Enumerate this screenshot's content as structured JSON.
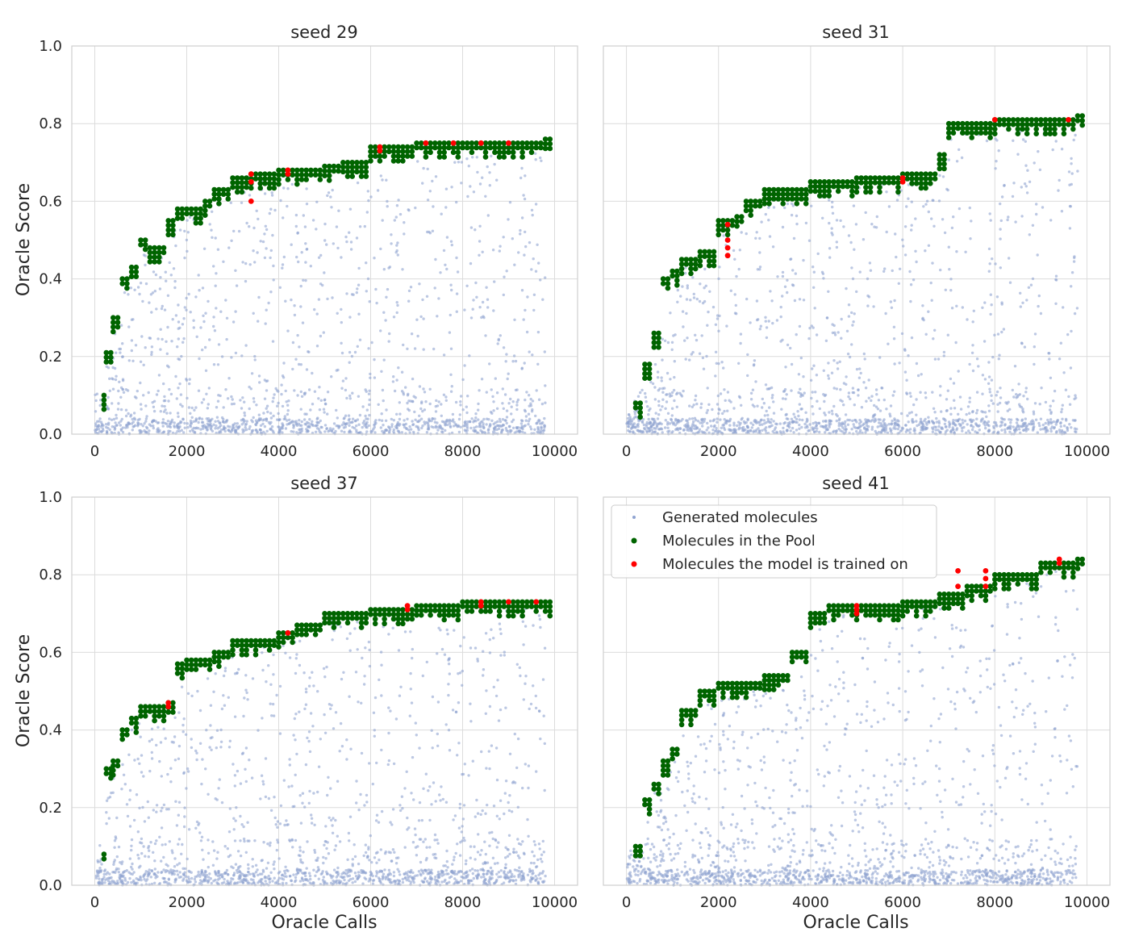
{
  "figure": {
    "panels": [
      {
        "key": "p29",
        "title": "seed 29"
      },
      {
        "key": "p31",
        "title": "seed 31"
      },
      {
        "key": "p37",
        "title": "seed 37"
      },
      {
        "key": "p41",
        "title": "seed 41"
      }
    ],
    "ylabel": "Oracle Score",
    "xlabel": "Oracle Calls",
    "x_ticks": [
      "0",
      "2000",
      "4000",
      "6000",
      "8000",
      "10000"
    ],
    "y_ticks": [
      "0.0",
      "0.2",
      "0.4",
      "0.6",
      "0.8",
      "1.0"
    ],
    "legend": {
      "generated": "Generated molecules",
      "pool": "Molecules in the Pool",
      "trained": "Molecules the model is trained on"
    }
  },
  "chart_data": [
    {
      "type": "scatter",
      "title": "seed 29",
      "ylabel": "Oracle Score",
      "xlim": [
        -500,
        10500
      ],
      "ylim": [
        0,
        1.0
      ],
      "grid": true,
      "series": [
        {
          "name": "Generated molecules",
          "color": "#8fa3d1",
          "sampling": "approx. 10000 molecules, dense near 0.0, spread below the pool frontier"
        },
        {
          "name": "Molecules in the Pool",
          "color": "#006400",
          "frontier": [
            [
              200,
              0.1
            ],
            [
              250,
              0.21
            ],
            [
              400,
              0.3
            ],
            [
              600,
              0.4
            ],
            [
              800,
              0.43
            ],
            [
              1000,
              0.5
            ],
            [
              1200,
              0.48
            ],
            [
              1600,
              0.55
            ],
            [
              1800,
              0.58
            ],
            [
              2400,
              0.6
            ],
            [
              2600,
              0.63
            ],
            [
              3000,
              0.66
            ],
            [
              3400,
              0.67
            ],
            [
              4000,
              0.68
            ],
            [
              5000,
              0.69
            ],
            [
              5400,
              0.7
            ],
            [
              6000,
              0.74
            ],
            [
              7000,
              0.75
            ],
            [
              8000,
              0.75
            ],
            [
              9000,
              0.75
            ],
            [
              9800,
              0.76
            ]
          ]
        },
        {
          "name": "Molecules the model is trained on",
          "color": "#ff0000",
          "points": [
            [
              3400,
              0.67
            ],
            [
              3400,
              0.65
            ],
            [
              3400,
              0.6
            ],
            [
              4200,
              0.68
            ],
            [
              4200,
              0.67
            ],
            [
              6200,
              0.74
            ],
            [
              6200,
              0.73
            ],
            [
              7200,
              0.75
            ],
            [
              7800,
              0.75
            ],
            [
              8400,
              0.75
            ],
            [
              9000,
              0.75
            ]
          ]
        }
      ]
    },
    {
      "type": "scatter",
      "title": "seed 31",
      "xlim": [
        -500,
        10500
      ],
      "ylim": [
        0,
        1.0
      ],
      "grid": true,
      "series": [
        {
          "name": "Generated molecules",
          "color": "#8fa3d1",
          "sampling": "approx. 10000 molecules, dense near 0.0, spread below the pool frontier"
        },
        {
          "name": "Molecules in the Pool",
          "color": "#006400",
          "frontier": [
            [
              200,
              0.08
            ],
            [
              400,
              0.18
            ],
            [
              600,
              0.26
            ],
            [
              800,
              0.4
            ],
            [
              1000,
              0.42
            ],
            [
              1200,
              0.45
            ],
            [
              1600,
              0.47
            ],
            [
              2000,
              0.55
            ],
            [
              2400,
              0.56
            ],
            [
              2600,
              0.6
            ],
            [
              3000,
              0.63
            ],
            [
              4000,
              0.65
            ],
            [
              5000,
              0.66
            ],
            [
              6000,
              0.67
            ],
            [
              6600,
              0.67
            ],
            [
              6800,
              0.72
            ],
            [
              7000,
              0.8
            ],
            [
              8000,
              0.81
            ],
            [
              9000,
              0.81
            ],
            [
              9800,
              0.82
            ]
          ]
        },
        {
          "name": "Molecules the model is trained on",
          "color": "#ff0000",
          "points": [
            [
              2200,
              0.54
            ],
            [
              2200,
              0.5
            ],
            [
              2200,
              0.48
            ],
            [
              2200,
              0.46
            ],
            [
              6000,
              0.66
            ],
            [
              6000,
              0.65
            ],
            [
              8000,
              0.81
            ],
            [
              9600,
              0.81
            ]
          ]
        }
      ]
    },
    {
      "type": "scatter",
      "title": "seed 37",
      "xlabel": "Oracle Calls",
      "ylabel": "Oracle Score",
      "xlim": [
        -500,
        10500
      ],
      "ylim": [
        0,
        1.0
      ],
      "grid": true,
      "series": [
        {
          "name": "Generated molecules",
          "color": "#8fa3d1",
          "sampling": "approx. 10000 molecules, dense near 0.0, spread below the pool frontier"
        },
        {
          "name": "Molecules in the Pool",
          "color": "#006400",
          "frontier": [
            [
              200,
              0.08
            ],
            [
              250,
              0.3
            ],
            [
              400,
              0.32
            ],
            [
              600,
              0.4
            ],
            [
              800,
              0.43
            ],
            [
              1000,
              0.46
            ],
            [
              1600,
              0.47
            ],
            [
              1800,
              0.57
            ],
            [
              2000,
              0.58
            ],
            [
              2600,
              0.6
            ],
            [
              3000,
              0.63
            ],
            [
              4000,
              0.65
            ],
            [
              4400,
              0.67
            ],
            [
              5000,
              0.7
            ],
            [
              6000,
              0.71
            ],
            [
              7000,
              0.72
            ],
            [
              8000,
              0.73
            ],
            [
              9000,
              0.73
            ],
            [
              9800,
              0.73
            ]
          ]
        },
        {
          "name": "Molecules the model is trained on",
          "color": "#ff0000",
          "points": [
            [
              1600,
              0.47
            ],
            [
              1600,
              0.46
            ],
            [
              4200,
              0.65
            ],
            [
              6800,
              0.72
            ],
            [
              6800,
              0.71
            ],
            [
              8400,
              0.73
            ],
            [
              8400,
              0.72
            ],
            [
              9000,
              0.73
            ],
            [
              9600,
              0.73
            ]
          ]
        }
      ]
    },
    {
      "type": "scatter",
      "title": "seed 41",
      "xlabel": "Oracle Calls",
      "xlim": [
        -500,
        10500
      ],
      "ylim": [
        0,
        1.0
      ],
      "grid": true,
      "legend": "top-left",
      "series": [
        {
          "name": "Generated molecules",
          "color": "#8fa3d1",
          "sampling": "approx. 10000 molecules, dense near 0.0, spread below the pool frontier"
        },
        {
          "name": "Molecules in the Pool",
          "color": "#006400",
          "frontier": [
            [
              200,
              0.1
            ],
            [
              400,
              0.22
            ],
            [
              600,
              0.26
            ],
            [
              800,
              0.32
            ],
            [
              1000,
              0.35
            ],
            [
              1200,
              0.45
            ],
            [
              1600,
              0.5
            ],
            [
              2000,
              0.52
            ],
            [
              3000,
              0.54
            ],
            [
              3600,
              0.6
            ],
            [
              4000,
              0.7
            ],
            [
              4400,
              0.72
            ],
            [
              5000,
              0.72
            ],
            [
              6000,
              0.73
            ],
            [
              6800,
              0.75
            ],
            [
              7400,
              0.77
            ],
            [
              8000,
              0.8
            ],
            [
              9000,
              0.83
            ],
            [
              9800,
              0.84
            ]
          ]
        },
        {
          "name": "Molecules the model is trained on",
          "color": "#ff0000",
          "points": [
            [
              5000,
              0.72
            ],
            [
              5000,
              0.71
            ],
            [
              5000,
              0.7
            ],
            [
              7200,
              0.81
            ],
            [
              7200,
              0.77
            ],
            [
              7800,
              0.81
            ],
            [
              7800,
              0.79
            ],
            [
              7800,
              0.77
            ],
            [
              9400,
              0.84
            ],
            [
              9400,
              0.83
            ]
          ]
        }
      ]
    }
  ]
}
